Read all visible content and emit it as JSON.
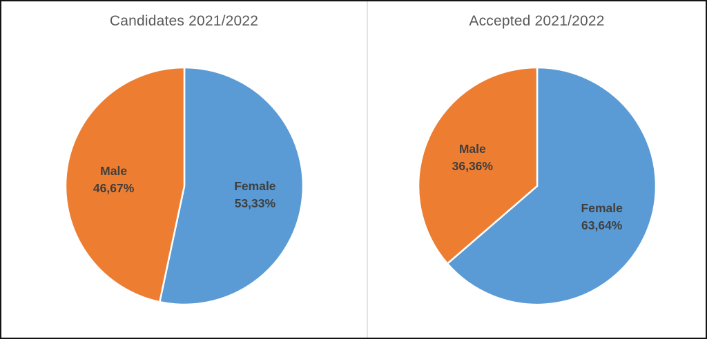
{
  "chart_data": [
    {
      "type": "pie",
      "title": "Candidates 2021/2022",
      "categories": [
        "Female",
        "Male"
      ],
      "values": [
        53.33,
        46.67
      ],
      "pct_labels": [
        "53,33%",
        "46,67%"
      ],
      "colors": [
        "#5B9BD5",
        "#ED7D31"
      ],
      "start_angle_deg": 0,
      "direction": "clockwise",
      "legend": "none",
      "labels_position": "inside"
    },
    {
      "type": "pie",
      "title": "Accepted 2021/2022",
      "categories": [
        "Female",
        "Male"
      ],
      "values": [
        63.64,
        36.36
      ],
      "pct_labels": [
        "63,64%",
        "36,36%"
      ],
      "colors": [
        "#5B9BD5",
        "#ED7D31"
      ],
      "start_angle_deg": 0,
      "direction": "clockwise",
      "legend": "none",
      "labels_position": "inside"
    }
  ],
  "style_colors": {
    "female_blue": "#5B9BD5",
    "male_orange": "#ED7D31",
    "title_gray": "#595959",
    "label_gray": "#3F3F3F",
    "divider_gray": "#E3E3E3",
    "slice_separator": "#FFFFFF"
  }
}
